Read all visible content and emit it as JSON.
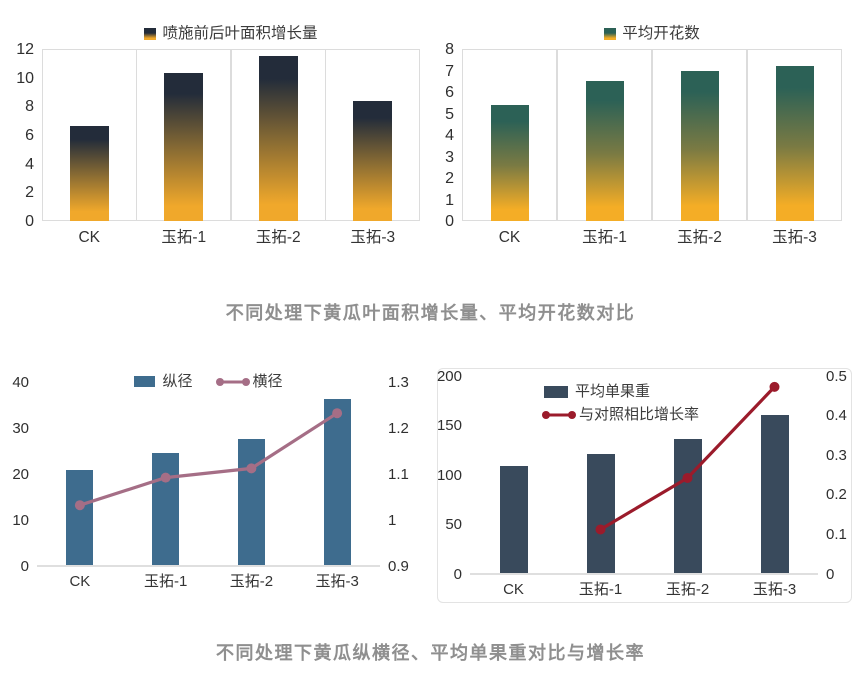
{
  "captions": {
    "top": "不同处理下黄瓜叶面积增长量、平均开花数对比",
    "bottom": "不同处理下黄瓜纵横径、平均单果重对比与增长率"
  },
  "chart_data": [
    {
      "id": "leaf-area-growth",
      "type": "bar",
      "title": "喷施前后叶面积增长量",
      "categories": [
        "CK",
        "玉拓-1",
        "玉拓-2",
        "玉拓-3"
      ],
      "series": [
        {
          "name": "喷施前后叶面积增长量",
          "type": "bar",
          "axis": "left",
          "values": [
            6.6,
            10.3,
            11.5,
            8.4
          ],
          "gradient": [
            "#232c3a",
            "#8a6c33",
            "#f0a82b"
          ]
        }
      ],
      "ylim": [
        0,
        12
      ],
      "yticks": [
        "0",
        "2",
        "4",
        "6",
        "8",
        "10",
        "12"
      ],
      "grid": "category-borders",
      "legend_position": "top-center"
    },
    {
      "id": "average-flower-count",
      "type": "bar",
      "title": "平均开花数",
      "categories": [
        "CK",
        "玉拓-1",
        "玉拓-2",
        "玉拓-3"
      ],
      "series": [
        {
          "name": "平均开花数",
          "type": "bar",
          "axis": "left",
          "values": [
            5.4,
            6.5,
            7.0,
            7.2
          ],
          "gradient": [
            "#2c6156",
            "#7a7a43",
            "#f4ad26"
          ]
        }
      ],
      "ylim": [
        0,
        8
      ],
      "yticks": [
        "0",
        "1",
        "2",
        "3",
        "4",
        "5",
        "6",
        "7",
        "8"
      ],
      "grid": "category-borders",
      "legend_position": "top-center"
    },
    {
      "id": "fruit-diameters",
      "type": "bar-line",
      "title": "纵径 / 横径",
      "categories": [
        "CK",
        "玉拓-1",
        "玉拓-2",
        "玉拓-3"
      ],
      "series": [
        {
          "name": "纵径",
          "type": "bar",
          "axis": "left",
          "color": "#3e6c8e",
          "values": [
            20.6,
            24.3,
            27.3,
            36.0
          ]
        },
        {
          "name": "横径",
          "type": "line",
          "axis": "right",
          "color": "#a56e86",
          "values": [
            1.03,
            1.09,
            1.11,
            1.23
          ]
        }
      ],
      "ylim": [
        0,
        40
      ],
      "yticks": [
        "0",
        "10",
        "20",
        "30",
        "40"
      ],
      "y2lim": [
        0.9,
        1.3
      ],
      "y2ticks": [
        "0.9",
        "1",
        "1.1",
        "1.2",
        "1.3"
      ],
      "grid": "none",
      "legend_position": "top-center"
    },
    {
      "id": "fruit-weight-and-growth-rate",
      "type": "bar-line",
      "title": "平均单果重 / 与对照相比增长率",
      "categories": [
        "CK",
        "玉拓-1",
        "玉拓-2",
        "玉拓-3"
      ],
      "series": [
        {
          "name": "平均单果重",
          "type": "bar",
          "axis": "left",
          "color": "#394a5c",
          "values": [
            108,
            120,
            135,
            160
          ]
        },
        {
          "name": "与对照相比增长率",
          "type": "line",
          "axis": "right",
          "color": "#9b1b2b",
          "values": [
            null,
            0.11,
            0.24,
            0.47
          ]
        }
      ],
      "ylim": [
        0,
        200
      ],
      "yticks": [
        "0",
        "50",
        "100",
        "150",
        "200"
      ],
      "y2lim": [
        0,
        0.5
      ],
      "y2ticks": [
        "0",
        "0.1",
        "0.2",
        "0.3",
        "0.4",
        "0.5"
      ],
      "grid": "none",
      "card_border": true,
      "legend_position": "upper-left-stacked"
    }
  ]
}
